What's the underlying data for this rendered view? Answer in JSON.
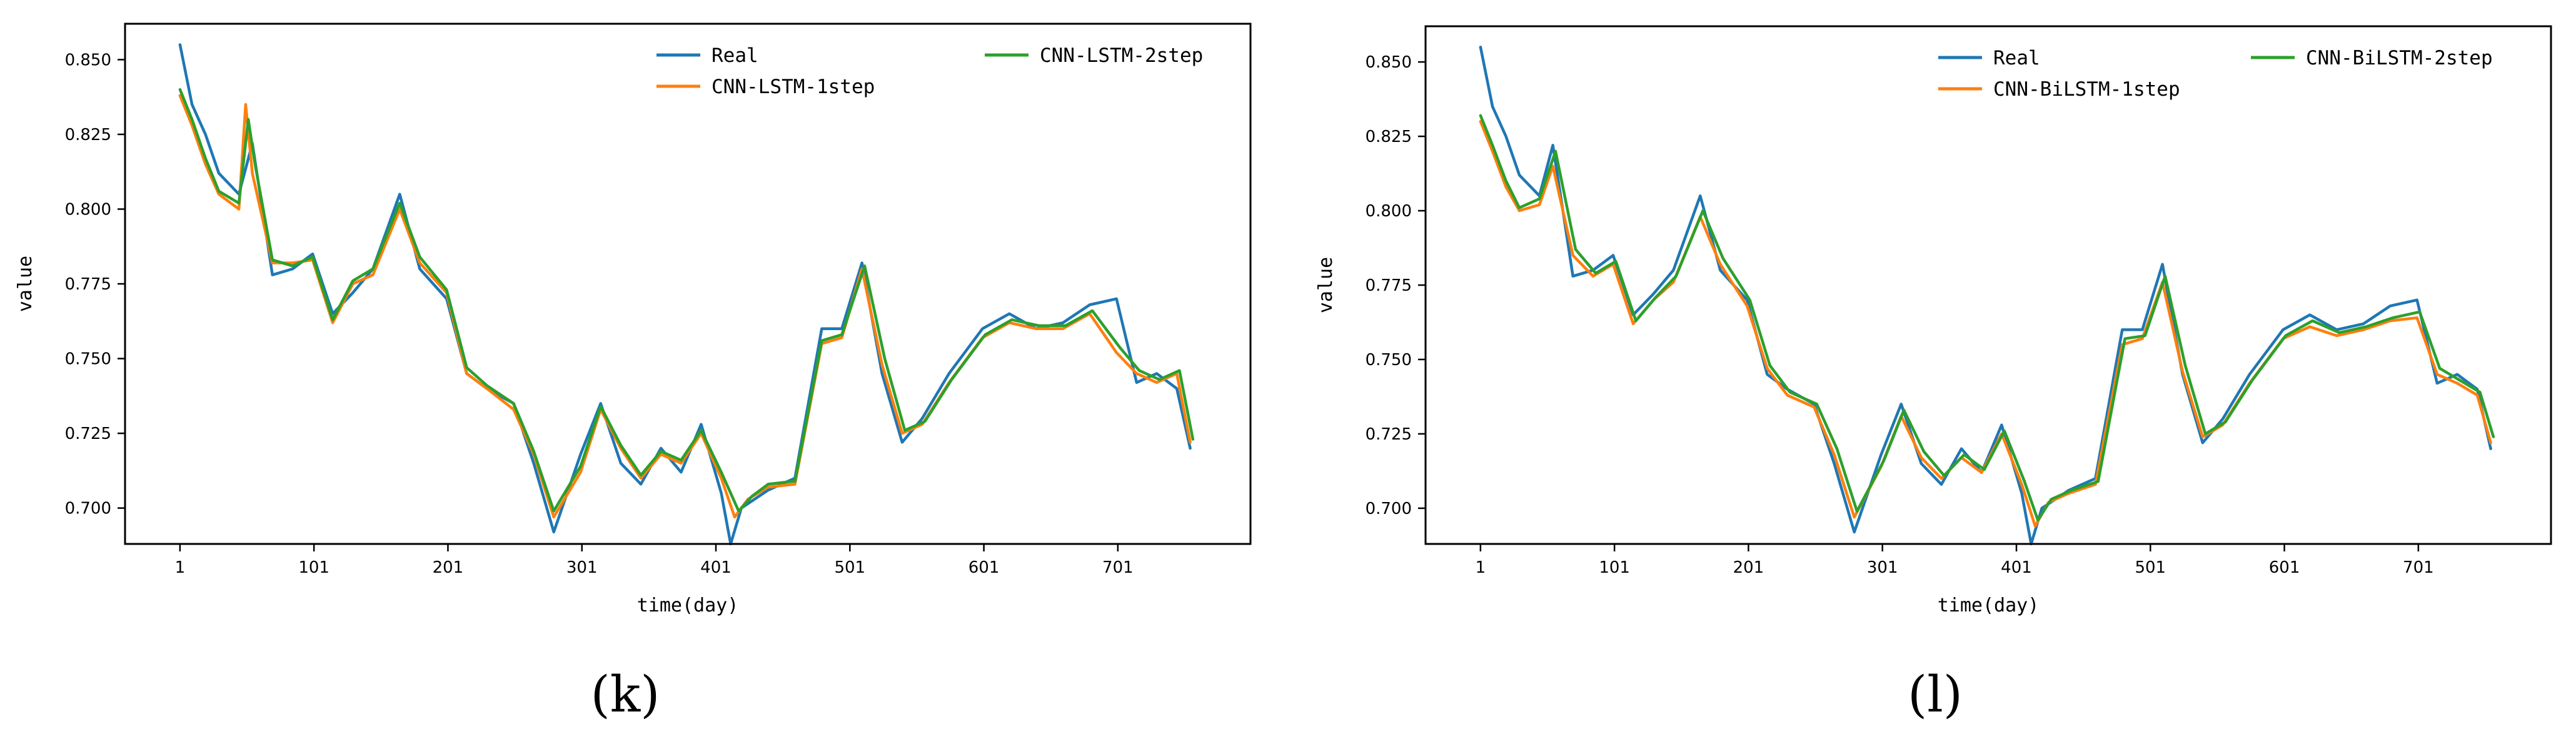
{
  "chart_data": [
    {
      "type": "line",
      "panel_label": "(k)",
      "xlabel": "time(day)",
      "ylabel": "value",
      "xlim": [
        -40,
        800
      ],
      "ylim": [
        0.688,
        0.862
      ],
      "xticks": [
        1,
        101,
        201,
        301,
        401,
        501,
        601,
        701
      ],
      "yticks": [
        0.7,
        0.725,
        0.75,
        0.775,
        0.8,
        0.825,
        0.85
      ],
      "ytick_labels": [
        "0.700",
        "0.725",
        "0.750",
        "0.775",
        "0.800",
        "0.825",
        "0.850"
      ],
      "grid": false,
      "legend_position": "top-right",
      "series": [
        {
          "name": "Real",
          "color": "#1f77b4",
          "x": [
            1,
            10,
            20,
            30,
            45,
            55,
            70,
            85,
            100,
            115,
            130,
            145,
            165,
            180,
            200,
            215,
            230,
            250,
            265,
            280,
            300,
            315,
            330,
            345,
            360,
            375,
            390,
            405,
            412,
            420,
            440,
            460,
            480,
            495,
            510,
            525,
            540,
            555,
            575,
            600,
            620,
            640,
            660,
            680,
            700,
            715,
            730,
            745,
            755
          ],
          "y": [
            0.855,
            0.835,
            0.825,
            0.812,
            0.805,
            0.822,
            0.778,
            0.78,
            0.785,
            0.765,
            0.772,
            0.78,
            0.805,
            0.78,
            0.77,
            0.745,
            0.74,
            0.735,
            0.715,
            0.692,
            0.718,
            0.735,
            0.715,
            0.708,
            0.72,
            0.712,
            0.728,
            0.705,
            0.688,
            0.7,
            0.706,
            0.71,
            0.76,
            0.76,
            0.782,
            0.745,
            0.722,
            0.73,
            0.745,
            0.76,
            0.765,
            0.76,
            0.762,
            0.768,
            0.77,
            0.742,
            0.745,
            0.74,
            0.72
          ]
        },
        {
          "name": "CNN-LSTM-1step",
          "color": "#ff7f0e",
          "x": [
            1,
            10,
            20,
            30,
            45,
            50,
            55,
            70,
            85,
            100,
            115,
            130,
            145,
            165,
            180,
            200,
            215,
            230,
            250,
            265,
            280,
            300,
            315,
            330,
            345,
            360,
            375,
            390,
            405,
            415,
            425,
            440,
            460,
            480,
            495,
            510,
            525,
            540,
            555,
            575,
            600,
            620,
            640,
            660,
            680,
            700,
            715,
            730,
            745,
            755
          ],
          "y": [
            0.838,
            0.828,
            0.815,
            0.805,
            0.8,
            0.835,
            0.812,
            0.782,
            0.782,
            0.783,
            0.762,
            0.775,
            0.778,
            0.8,
            0.782,
            0.772,
            0.745,
            0.74,
            0.733,
            0.718,
            0.697,
            0.712,
            0.733,
            0.72,
            0.71,
            0.718,
            0.715,
            0.725,
            0.71,
            0.697,
            0.703,
            0.707,
            0.708,
            0.755,
            0.757,
            0.78,
            0.748,
            0.725,
            0.728,
            0.742,
            0.757,
            0.762,
            0.76,
            0.76,
            0.765,
            0.752,
            0.745,
            0.742,
            0.745,
            0.722
          ]
        },
        {
          "name": "CNN-LSTM-2step",
          "color": "#2ca02c",
          "x": [
            1,
            10,
            20,
            30,
            45,
            52,
            57,
            70,
            85,
            100,
            115,
            130,
            145,
            165,
            180,
            200,
            215,
            230,
            250,
            265,
            280,
            300,
            315,
            330,
            345,
            360,
            375,
            390,
            405,
            418,
            428,
            440,
            460,
            480,
            495,
            512,
            527,
            542,
            557,
            577,
            602,
            622,
            642,
            662,
            682,
            702,
            717,
            732,
            747,
            757
          ],
          "y": [
            0.84,
            0.83,
            0.817,
            0.806,
            0.802,
            0.83,
            0.815,
            0.783,
            0.781,
            0.784,
            0.763,
            0.776,
            0.78,
            0.802,
            0.784,
            0.773,
            0.747,
            0.741,
            0.735,
            0.719,
            0.699,
            0.714,
            0.734,
            0.721,
            0.711,
            0.719,
            0.716,
            0.726,
            0.712,
            0.699,
            0.704,
            0.708,
            0.709,
            0.756,
            0.758,
            0.781,
            0.75,
            0.726,
            0.729,
            0.743,
            0.758,
            0.763,
            0.761,
            0.761,
            0.766,
            0.754,
            0.746,
            0.743,
            0.746,
            0.723
          ]
        }
      ]
    },
    {
      "type": "line",
      "panel_label": "(l)",
      "xlabel": "time(day)",
      "ylabel": "value",
      "xlim": [
        -40,
        800
      ],
      "ylim": [
        0.688,
        0.862
      ],
      "xticks": [
        1,
        101,
        201,
        301,
        401,
        501,
        601,
        701
      ],
      "yticks": [
        0.7,
        0.725,
        0.75,
        0.775,
        0.8,
        0.825,
        0.85
      ],
      "ytick_labels": [
        "0.700",
        "0.725",
        "0.750",
        "0.775",
        "0.800",
        "0.825",
        "0.850"
      ],
      "grid": false,
      "legend_position": "top-right",
      "series": [
        {
          "name": "Real",
          "color": "#1f77b4",
          "x": [
            1,
            10,
            20,
            30,
            45,
            55,
            70,
            85,
            100,
            115,
            130,
            145,
            165,
            180,
            200,
            215,
            230,
            250,
            265,
            280,
            300,
            315,
            330,
            345,
            360,
            375,
            390,
            405,
            412,
            420,
            440,
            460,
            480,
            495,
            510,
            525,
            540,
            555,
            575,
            600,
            620,
            640,
            660,
            680,
            700,
            715,
            730,
            745,
            755
          ],
          "y": [
            0.855,
            0.835,
            0.825,
            0.812,
            0.805,
            0.822,
            0.778,
            0.78,
            0.785,
            0.765,
            0.772,
            0.78,
            0.805,
            0.78,
            0.77,
            0.745,
            0.74,
            0.735,
            0.715,
            0.692,
            0.718,
            0.735,
            0.715,
            0.708,
            0.72,
            0.712,
            0.728,
            0.705,
            0.688,
            0.7,
            0.706,
            0.71,
            0.76,
            0.76,
            0.782,
            0.745,
            0.722,
            0.73,
            0.745,
            0.76,
            0.765,
            0.76,
            0.762,
            0.768,
            0.77,
            0.742,
            0.745,
            0.74,
            0.72
          ]
        },
        {
          "name": "CNN-BiLSTM-1step",
          "color": "#ff7f0e",
          "x": [
            1,
            10,
            20,
            30,
            45,
            55,
            70,
            85,
            100,
            115,
            130,
            145,
            165,
            180,
            200,
            215,
            230,
            250,
            265,
            280,
            300,
            315,
            330,
            345,
            360,
            375,
            390,
            405,
            415,
            425,
            440,
            460,
            480,
            495,
            510,
            525,
            540,
            555,
            575,
            600,
            620,
            640,
            660,
            680,
            700,
            715,
            730,
            745,
            755
          ],
          "y": [
            0.83,
            0.82,
            0.808,
            0.8,
            0.802,
            0.815,
            0.785,
            0.778,
            0.782,
            0.762,
            0.77,
            0.776,
            0.798,
            0.782,
            0.768,
            0.747,
            0.738,
            0.734,
            0.718,
            0.697,
            0.714,
            0.731,
            0.717,
            0.71,
            0.717,
            0.712,
            0.725,
            0.708,
            0.694,
            0.702,
            0.705,
            0.708,
            0.755,
            0.757,
            0.776,
            0.746,
            0.724,
            0.728,
            0.742,
            0.757,
            0.761,
            0.758,
            0.76,
            0.763,
            0.764,
            0.745,
            0.742,
            0.738,
            0.722
          ]
        },
        {
          "name": "CNN-BiLSTM-2step",
          "color": "#2ca02c",
          "x": [
            1,
            10,
            20,
            30,
            45,
            57,
            72,
            87,
            102,
            117,
            132,
            147,
            167,
            182,
            202,
            217,
            232,
            252,
            267,
            282,
            302,
            317,
            332,
            347,
            362,
            377,
            392,
            407,
            417,
            427,
            442,
            462,
            482,
            497,
            512,
            527,
            542,
            557,
            577,
            602,
            622,
            642,
            662,
            682,
            702,
            717,
            732,
            747,
            757
          ],
          "y": [
            0.832,
            0.822,
            0.81,
            0.801,
            0.804,
            0.82,
            0.787,
            0.779,
            0.783,
            0.763,
            0.771,
            0.778,
            0.8,
            0.784,
            0.77,
            0.748,
            0.739,
            0.735,
            0.72,
            0.699,
            0.716,
            0.733,
            0.719,
            0.711,
            0.718,
            0.713,
            0.726,
            0.709,
            0.696,
            0.703,
            0.706,
            0.709,
            0.757,
            0.758,
            0.778,
            0.748,
            0.725,
            0.729,
            0.743,
            0.758,
            0.763,
            0.759,
            0.761,
            0.764,
            0.766,
            0.747,
            0.743,
            0.739,
            0.724
          ]
        }
      ]
    }
  ]
}
